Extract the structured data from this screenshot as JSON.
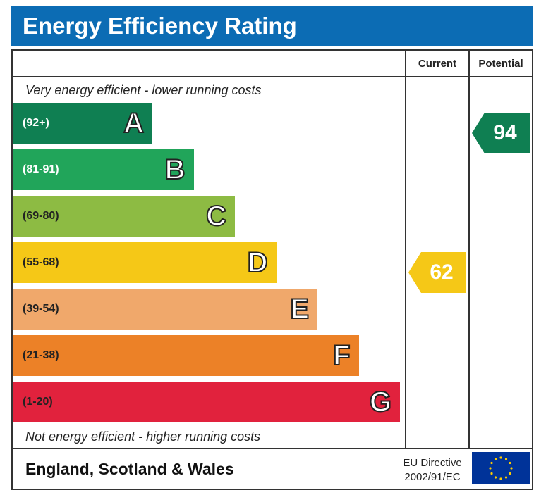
{
  "title": "Energy Efficiency Rating",
  "columns": {
    "current": "Current",
    "potential": "Potential"
  },
  "top_caption": "Very energy efficient - lower running costs",
  "bottom_caption": "Not energy efficient - higher running costs",
  "footer": {
    "region": "England, Scotland & Wales",
    "directive_line1": "EU Directive",
    "directive_line2": "2002/91/EC"
  },
  "colors": {
    "A": "#0f7f52",
    "B": "#21a55a",
    "C": "#8dbb43",
    "D": "#f5c817",
    "E": "#f0a86b",
    "F": "#ec8127",
    "G": "#e1223d"
  },
  "chart_data": {
    "type": "bar",
    "categories": [
      "A",
      "B",
      "C",
      "D",
      "E",
      "F",
      "G"
    ],
    "ranges": [
      "(92+)",
      "(81-91)",
      "(69-80)",
      "(55-68)",
      "(39-54)",
      "(21-38)",
      "(1-20)"
    ],
    "current": {
      "value": 62,
      "band": "D"
    },
    "potential": {
      "value": 94,
      "band": "A"
    }
  }
}
